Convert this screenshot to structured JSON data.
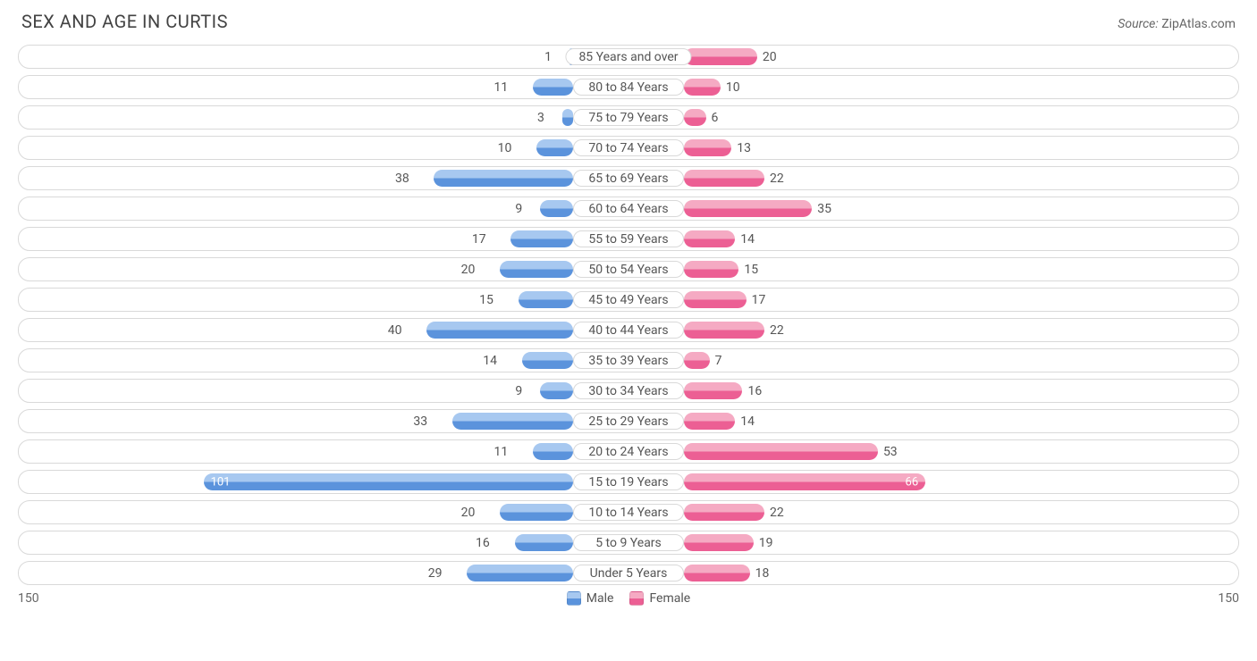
{
  "title": "SEX AND AGE IN CURTIS",
  "source_label": "Source:",
  "source_value": "ZipAtlas.com",
  "axis_max": 150,
  "colors": {
    "male": {
      "light": "#a7c8f0",
      "dark": "#5b93dc"
    },
    "female": {
      "light": "#f5aac3",
      "dark": "#ec5f94"
    },
    "track_border": "#d9d9d9",
    "background": "#ffffff",
    "text": "#555555"
  },
  "legend": {
    "male": "Male",
    "female": "Female"
  },
  "inside_threshold": 65,
  "rows": [
    {
      "label": "85 Years and over",
      "male": 1,
      "female": 20
    },
    {
      "label": "80 to 84 Years",
      "male": 11,
      "female": 10
    },
    {
      "label": "75 to 79 Years",
      "male": 3,
      "female": 6
    },
    {
      "label": "70 to 74 Years",
      "male": 10,
      "female": 13
    },
    {
      "label": "65 to 69 Years",
      "male": 38,
      "female": 22
    },
    {
      "label": "60 to 64 Years",
      "male": 9,
      "female": 35
    },
    {
      "label": "55 to 59 Years",
      "male": 17,
      "female": 14
    },
    {
      "label": "50 to 54 Years",
      "male": 20,
      "female": 15
    },
    {
      "label": "45 to 49 Years",
      "male": 15,
      "female": 17
    },
    {
      "label": "40 to 44 Years",
      "male": 40,
      "female": 22
    },
    {
      "label": "35 to 39 Years",
      "male": 14,
      "female": 7
    },
    {
      "label": "30 to 34 Years",
      "male": 9,
      "female": 16
    },
    {
      "label": "25 to 29 Years",
      "male": 33,
      "female": 14
    },
    {
      "label": "20 to 24 Years",
      "male": 11,
      "female": 53
    },
    {
      "label": "15 to 19 Years",
      "male": 101,
      "female": 66
    },
    {
      "label": "10 to 14 Years",
      "male": 20,
      "female": 22
    },
    {
      "label": "5 to 9 Years",
      "male": 16,
      "female": 19
    },
    {
      "label": "Under 5 Years",
      "male": 29,
      "female": 18
    }
  ]
}
